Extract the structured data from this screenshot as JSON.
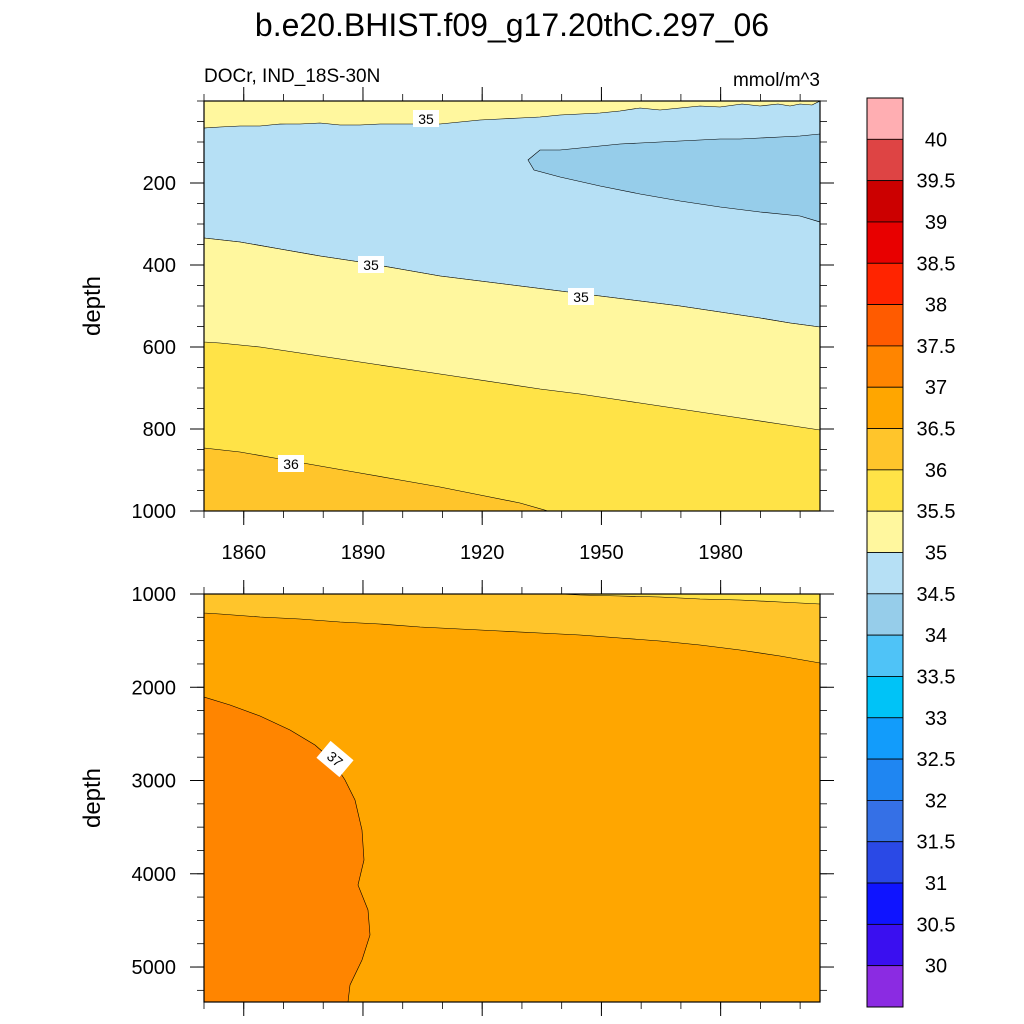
{
  "title": "b.e20.BHIST.f09_g17.20thC.297_06",
  "left_string": "DOCr, IND_18S-30N",
  "right_string": "mmol/m^3",
  "colors": {
    "levels": [
      "#8b2be2",
      "#3a0ff0",
      "#0f14ff",
      "#2a49e6",
      "#3570e6",
      "#1f86f2",
      "#129cfb",
      "#00c3f7",
      "#4fc3f7",
      "#96cdea",
      "#b6e0f5",
      "#fff79e",
      "#ffe347",
      "#ffc52b",
      "#ffa600",
      "#ff8500",
      "#ff5b00",
      "#ff2400",
      "#e80000",
      "#cc0000",
      "#de4444",
      "#ffaeb2"
    ]
  },
  "chart_data": [
    {
      "type": "contour",
      "panel": "upper",
      "ylabel": "depth",
      "x_ticks": [
        "1860",
        "1890",
        "1920",
        "1950",
        "1980"
      ],
      "y_ticks": [
        "200",
        "400",
        "600",
        "800",
        "1000"
      ],
      "xlim": [
        1850,
        2005
      ],
      "ylim": [
        0,
        1000
      ],
      "y_inverted": true,
      "contour_labels": [
        "35",
        "35",
        "35",
        "36"
      ],
      "regions": [
        {
          "level": 34.5,
          "description": "34.5-35 band from about 80 to 330 m on the left, deepening to about 550 m on the right"
        },
        {
          "level": 34.0,
          "description": "34-34.5 pocket from about 1930 onward between about 120 and 290 m"
        },
        {
          "level": 35.0,
          "description": "35-35.5 near the surface and from about 330-590 m on the left down to about 550-800 m on the right"
        },
        {
          "level": 35.5,
          "description": "35.5-36 from about 590-840 m on the left to below 800 m on the right"
        },
        {
          "level": 36.0,
          "description": "36-36.5 in the lower left corner below about 840 m until about 1935"
        }
      ]
    },
    {
      "type": "contour",
      "panel": "lower",
      "ylabel": "depth",
      "x_ticks": [
        "1860",
        "1890",
        "1920",
        "1950",
        "1980"
      ],
      "y_ticks": [
        "1000",
        "2000",
        "3000",
        "4000",
        "5000"
      ],
      "xlim": [
        1850,
        2005
      ],
      "ylim": [
        1000,
        5375
      ],
      "y_inverted": true,
      "contour_labels": [
        "37"
      ],
      "regions": [
        {
          "level": 36.0,
          "description": "36-36.5 thin upper layer from 1000 m to about 1200 m on the left and about 1750 m on the right"
        },
        {
          "level": 36.5,
          "description": "36.5-37 most of the deep section"
        },
        {
          "level": 37.0,
          "description": "37-37.5 bulge on the left side from about 2100 m to the bottom"
        }
      ]
    }
  ],
  "colorbar": {
    "labels": [
      "30",
      "30.5",
      "31",
      "31.5",
      "32",
      "32.5",
      "33",
      "33.5",
      "34",
      "34.5",
      "35",
      "35.5",
      "36",
      "36.5",
      "37",
      "37.5",
      "38",
      "38.5",
      "39",
      "39.5",
      "40"
    ]
  }
}
